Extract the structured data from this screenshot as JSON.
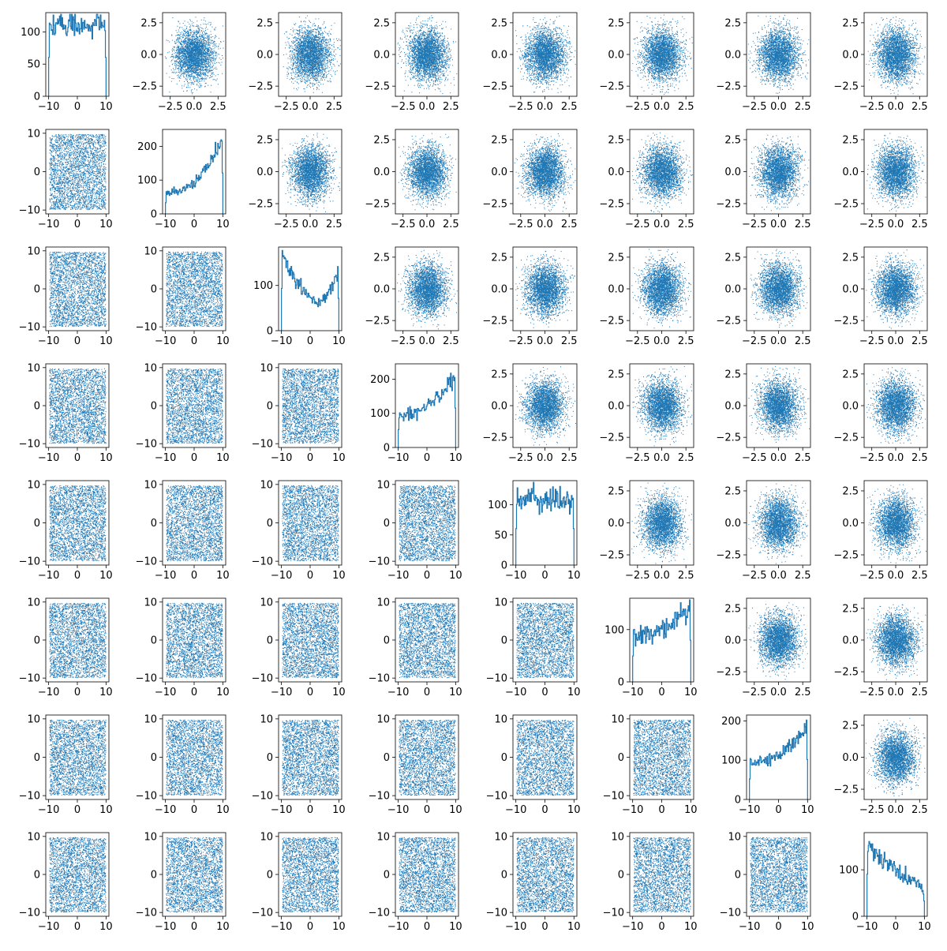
{
  "figure": {
    "layout": "8x8 corner plot",
    "point_color": "#1f77b4",
    "axis_color": "#000000",
    "background": "#ffffff"
  },
  "chart_data": {
    "type": "scatter-matrix",
    "n_vars": 8,
    "upper_triangle": "scatter of standard-normal samples",
    "lower_triangle": "scatter of uniform samples on [-10, 10]",
    "diagonal": "histogram (step line)",
    "axes": {
      "normal": {
        "range": [
          -3.3,
          3.3
        ],
        "ticks": [
          -2.5,
          0.0,
          2.5
        ],
        "tick_labels": [
          "−2.5",
          "0.0",
          "2.5"
        ]
      },
      "uniform": {
        "range": [
          -11,
          11
        ],
        "ticks": [
          -10,
          0,
          10
        ],
        "tick_labels": [
          "−10",
          "0",
          "10"
        ]
      }
    },
    "histograms": [
      {
        "shape": "flat",
        "ymax": 130,
        "yticks": [
          0,
          50,
          100
        ],
        "ytick_labels": [
          "0",
          "50",
          "100"
        ],
        "level": 110
      },
      {
        "shape": "rising",
        "ymax": 250,
        "yticks": [
          0,
          100,
          200
        ],
        "ytick_labels": [
          "0",
          "100",
          "200"
        ],
        "start": 60,
        "end": 220
      },
      {
        "shape": "u-shape",
        "ymax": 185,
        "yticks": [
          0,
          100
        ],
        "ytick_labels": [
          "0",
          "100"
        ],
        "left": 170,
        "min": 65,
        "right": 130
      },
      {
        "shape": "rising",
        "ymax": 245,
        "yticks": [
          0,
          100,
          200
        ],
        "ytick_labels": [
          "0",
          "100",
          "200"
        ],
        "start": 95,
        "end": 210
      },
      {
        "shape": "flat",
        "ymax": 140,
        "yticks": [
          0,
          50,
          100
        ],
        "ytick_labels": [
          "0",
          "50",
          "100"
        ],
        "level": 110
      },
      {
        "shape": "rising",
        "ymax": 160,
        "yticks": [
          0,
          100
        ],
        "ytick_labels": [
          "0",
          "100"
        ],
        "start": 90,
        "end": 145
      },
      {
        "shape": "rising",
        "ymax": 215,
        "yticks": [
          0,
          100,
          200
        ],
        "ytick_labels": [
          "0",
          "100",
          "200"
        ],
        "start": 95,
        "end": 185
      },
      {
        "shape": "falling",
        "ymax": 180,
        "yticks": [
          0,
          100
        ],
        "ytick_labels": [
          "0",
          "100"
        ],
        "start": 165,
        "end": 60
      }
    ],
    "points_per_scatter": 3200
  }
}
